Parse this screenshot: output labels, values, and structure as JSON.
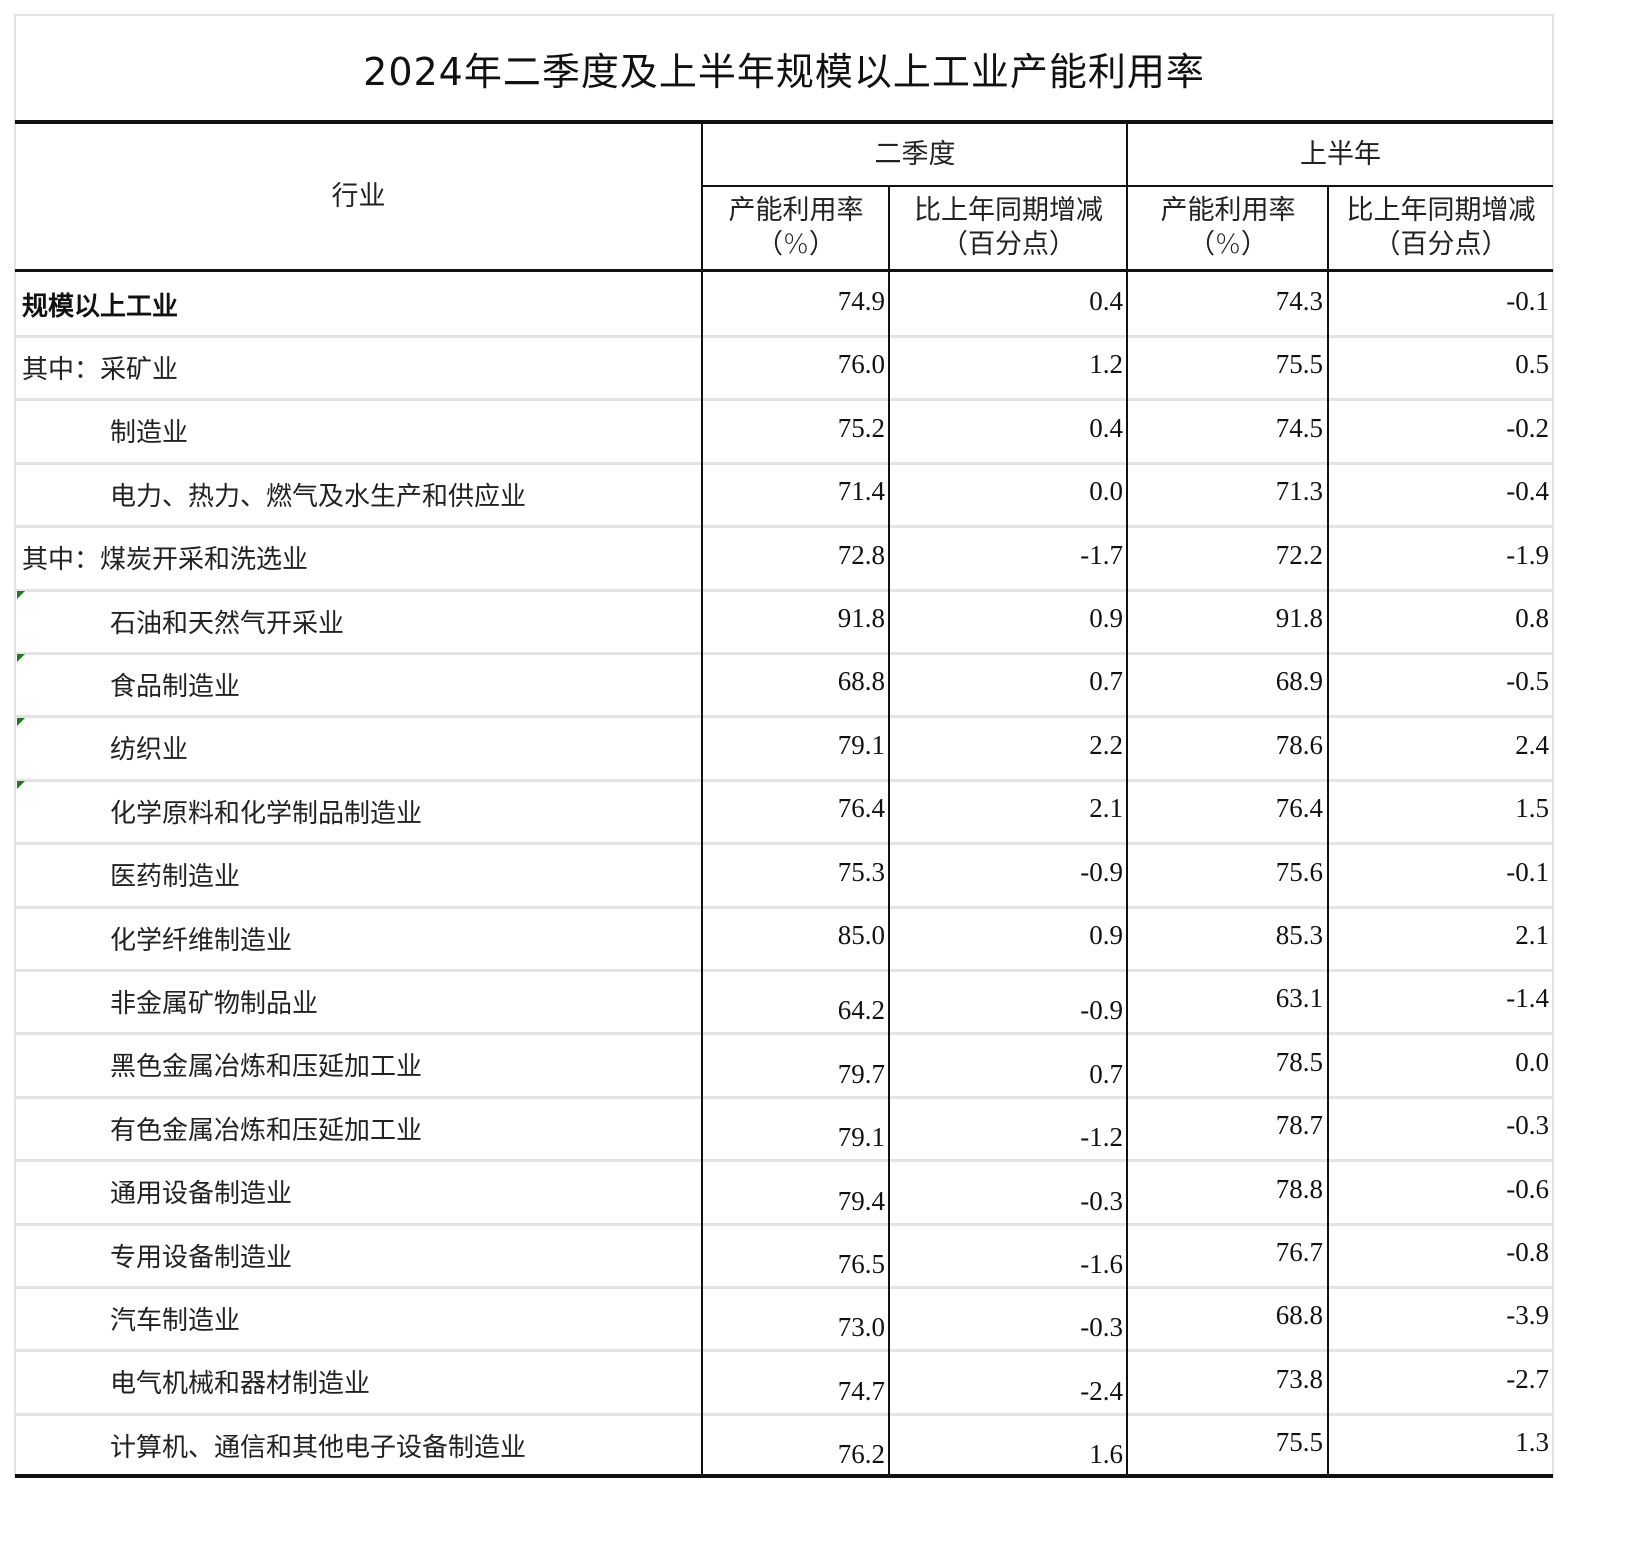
{
  "title": "2024年二季度及上半年规模以上工业产能利用率",
  "header": {
    "industry": "行业",
    "q2": "二季度",
    "h1": "上半年",
    "rate_line1": "产能利用率",
    "rate_line2": "（%）",
    "change_line1": "比上年同期增减",
    "change_line2": "（百分点）"
  },
  "rows": [
    {
      "label": "规模以上工业",
      "indent": 0,
      "bold": true,
      "q2_rate": "74.9",
      "q2_change": "0.4",
      "h1_rate": "74.3",
      "h1_change": "-0.1",
      "low": false,
      "flag": false
    },
    {
      "label": "其中：采矿业",
      "indent": 0,
      "bold": false,
      "q2_rate": "76.0",
      "q2_change": "1.2",
      "h1_rate": "75.5",
      "h1_change": "0.5",
      "low": false,
      "flag": false
    },
    {
      "label": "制造业",
      "indent": 1,
      "bold": false,
      "q2_rate": "75.2",
      "q2_change": "0.4",
      "h1_rate": "74.5",
      "h1_change": "-0.2",
      "low": false,
      "flag": false
    },
    {
      "label": "电力、热力、燃气及水生产和供应业",
      "indent": 1,
      "bold": false,
      "q2_rate": "71.4",
      "q2_change": "0.0",
      "h1_rate": "71.3",
      "h1_change": "-0.4",
      "low": false,
      "flag": false
    },
    {
      "label": "其中：煤炭开采和洗选业",
      "indent": 0,
      "bold": false,
      "q2_rate": "72.8",
      "q2_change": "-1.7",
      "h1_rate": "72.2",
      "h1_change": "-1.9",
      "low": false,
      "flag": false
    },
    {
      "label": "石油和天然气开采业",
      "indent": 1,
      "bold": false,
      "q2_rate": "91.8",
      "q2_change": "0.9",
      "h1_rate": "91.8",
      "h1_change": "0.8",
      "low": false,
      "flag": true
    },
    {
      "label": "食品制造业",
      "indent": 1,
      "bold": false,
      "q2_rate": "68.8",
      "q2_change": "0.7",
      "h1_rate": "68.9",
      "h1_change": "-0.5",
      "low": false,
      "flag": true
    },
    {
      "label": "纺织业",
      "indent": 1,
      "bold": false,
      "q2_rate": "79.1",
      "q2_change": "2.2",
      "h1_rate": "78.6",
      "h1_change": "2.4",
      "low": false,
      "flag": true
    },
    {
      "label": "化学原料和化学制品制造业",
      "indent": 1,
      "bold": false,
      "q2_rate": "76.4",
      "q2_change": "2.1",
      "h1_rate": "76.4",
      "h1_change": "1.5",
      "low": false,
      "flag": true
    },
    {
      "label": "医药制造业",
      "indent": 1,
      "bold": false,
      "q2_rate": "75.3",
      "q2_change": "-0.9",
      "h1_rate": "75.6",
      "h1_change": "-0.1",
      "low": false,
      "flag": false
    },
    {
      "label": "化学纤维制造业",
      "indent": 1,
      "bold": false,
      "q2_rate": "85.0",
      "q2_change": "0.9",
      "h1_rate": "85.3",
      "h1_change": "2.1",
      "low": false,
      "flag": false
    },
    {
      "label": "非金属矿物制品业",
      "indent": 1,
      "bold": false,
      "q2_rate": "64.2",
      "q2_change": "-0.9",
      "h1_rate": "63.1",
      "h1_change": "-1.4",
      "low": true,
      "flag": false
    },
    {
      "label": "黑色金属冶炼和压延加工业",
      "indent": 1,
      "bold": false,
      "q2_rate": "79.7",
      "q2_change": "0.7",
      "h1_rate": "78.5",
      "h1_change": "0.0",
      "low": true,
      "flag": false
    },
    {
      "label": "有色金属冶炼和压延加工业",
      "indent": 1,
      "bold": false,
      "q2_rate": "79.1",
      "q2_change": "-1.2",
      "h1_rate": "78.7",
      "h1_change": "-0.3",
      "low": true,
      "flag": false
    },
    {
      "label": "通用设备制造业",
      "indent": 1,
      "bold": false,
      "q2_rate": "79.4",
      "q2_change": "-0.3",
      "h1_rate": "78.8",
      "h1_change": "-0.6",
      "low": true,
      "flag": false
    },
    {
      "label": "专用设备制造业",
      "indent": 1,
      "bold": false,
      "q2_rate": "76.5",
      "q2_change": "-1.6",
      "h1_rate": "76.7",
      "h1_change": "-0.8",
      "low": true,
      "flag": false
    },
    {
      "label": "汽车制造业",
      "indent": 1,
      "bold": false,
      "q2_rate": "73.0",
      "q2_change": "-0.3",
      "h1_rate": "68.8",
      "h1_change": "-3.9",
      "low": true,
      "flag": false
    },
    {
      "label": "电气机械和器材制造业",
      "indent": 1,
      "bold": false,
      "q2_rate": "74.7",
      "q2_change": "-2.4",
      "h1_rate": "73.8",
      "h1_change": "-2.7",
      "low": true,
      "flag": false
    },
    {
      "label": "计算机、通信和其他电子设备制造业",
      "indent": 1,
      "bold": false,
      "q2_rate": "76.2",
      "q2_change": "1.6",
      "h1_rate": "75.5",
      "h1_change": "1.3",
      "low": true,
      "flag": false
    }
  ]
}
